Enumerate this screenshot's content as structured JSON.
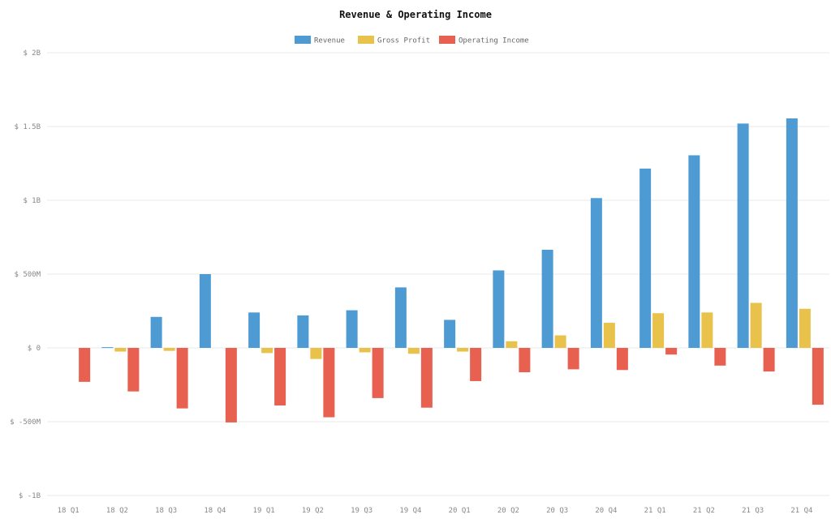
{
  "chart_data": {
    "type": "bar",
    "title": "Revenue & Operating Income",
    "categories": [
      "18 Q1",
      "18 Q2",
      "18 Q3",
      "18 Q4",
      "19 Q1",
      "19 Q2",
      "19 Q3",
      "19 Q4",
      "20 Q1",
      "20 Q2",
      "20 Q3",
      "20 Q4",
      "21 Q1",
      "21 Q2",
      "21 Q3",
      "21 Q4"
    ],
    "series": [
      {
        "name": "Revenue",
        "color": "#4e9bd4",
        "values": [
          0,
          5,
          210,
          500,
          240,
          220,
          255,
          410,
          190,
          525,
          665,
          1015,
          1215,
          1305,
          1520,
          1555
        ]
      },
      {
        "name": "Gross Profit",
        "color": "#e8c24a",
        "values": [
          0,
          -25,
          -20,
          0,
          -35,
          -75,
          -30,
          -40,
          -25,
          45,
          85,
          170,
          235,
          240,
          305,
          265
        ]
      },
      {
        "name": "Operating Income",
        "color": "#e8604f",
        "values": [
          -230,
          -295,
          -410,
          -505,
          -390,
          -470,
          -340,
          -405,
          -225,
          -165,
          -145,
          -150,
          -45,
          -120,
          -160,
          -385
        ]
      }
    ],
    "y_tick_labels": [
      "$ 2B",
      "$ 1.5B",
      "$ 1B",
      "$ 500M",
      "$ 0",
      "$ -500M",
      "$ -1B"
    ],
    "y_tick_values": [
      2000,
      1500,
      1000,
      500,
      0,
      -500,
      -1000
    ],
    "ylim": [
      -1000,
      2000
    ],
    "y_unit": "millions USD",
    "legend_position": "top-center",
    "grid": true
  }
}
